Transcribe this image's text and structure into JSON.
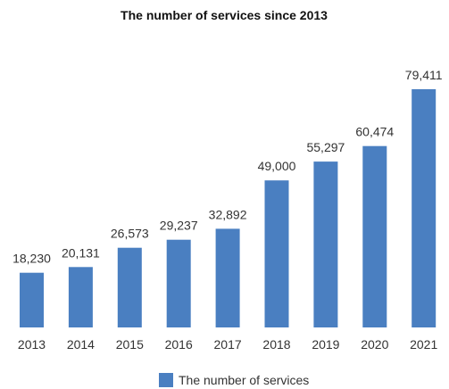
{
  "chart_data": {
    "type": "bar",
    "title": "The number of services since 2013",
    "categories": [
      "2013",
      "2014",
      "2015",
      "2016",
      "2017",
      "2018",
      "2019",
      "2020",
      "2021"
    ],
    "series": [
      {
        "name": "The number of services",
        "values": [
          18230,
          20131,
          26573,
          29237,
          32892,
          49000,
          55297,
          60474,
          79411
        ],
        "labels": [
          "18,230",
          "20,131",
          "26,573",
          "29,237",
          "32,892",
          "49,000",
          "55,297",
          "60,474",
          "79,411"
        ],
        "color": "#4a7fc1"
      }
    ],
    "xlabel": "",
    "ylabel": "",
    "ylim": [
      0,
      79411
    ],
    "grid": false,
    "legend": "bottom"
  }
}
